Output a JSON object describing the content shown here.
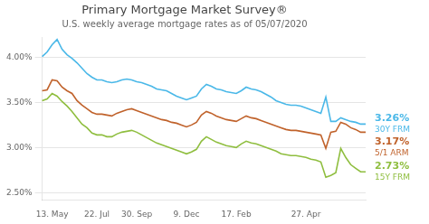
{
  "chart_data": {
    "type": "line",
    "title": "Primary Mortgage Market Survey®",
    "subtitle": "U.S. weekly average mortgage rates as of 05/07/2020",
    "categories": [
      null,
      null,
      "13. May",
      null,
      null,
      null,
      null,
      null,
      null,
      null,
      null,
      "22. Jul",
      null,
      null,
      null,
      null,
      null,
      null,
      null,
      "30. Sep",
      null,
      null,
      null,
      null,
      null,
      null,
      null,
      null,
      null,
      "9. Dec",
      null,
      null,
      null,
      null,
      null,
      null,
      null,
      null,
      null,
      "17. Feb",
      null,
      null,
      null,
      null,
      null,
      null,
      null,
      null,
      null,
      null,
      null,
      null,
      null,
      "27. Apr",
      null,
      null,
      null,
      null,
      null,
      null,
      null,
      null,
      null,
      null,
      null,
      null
    ],
    "series": [
      {
        "name": "30Y FRM",
        "color": "#4ab8e8",
        "annotation": "3.26%",
        "values": [
          4.01,
          4.06,
          4.14,
          4.2,
          4.09,
          4.03,
          3.99,
          3.94,
          3.88,
          3.82,
          3.78,
          3.75,
          3.75,
          3.73,
          3.72,
          3.73,
          3.75,
          3.76,
          3.75,
          3.73,
          3.72,
          3.7,
          3.68,
          3.65,
          3.64,
          3.63,
          3.6,
          3.57,
          3.55,
          3.53,
          3.55,
          3.57,
          3.65,
          3.7,
          3.68,
          3.65,
          3.64,
          3.62,
          3.61,
          3.6,
          3.63,
          3.67,
          3.65,
          3.64,
          3.62,
          3.59,
          3.56,
          3.52,
          3.5,
          3.48,
          3.47,
          3.47,
          3.46,
          3.44,
          3.42,
          3.4,
          3.38,
          3.56,
          3.29,
          3.29,
          3.33,
          3.31,
          3.29,
          3.28,
          3.26,
          3.26
        ]
      },
      {
        "name": "5/1 ARM",
        "color": "#c0622b",
        "annotation": "3.17%",
        "values": [
          3.63,
          3.64,
          3.75,
          3.74,
          3.67,
          3.63,
          3.6,
          3.52,
          3.47,
          3.43,
          3.39,
          3.37,
          3.37,
          3.36,
          3.35,
          3.38,
          3.4,
          3.42,
          3.43,
          3.41,
          3.39,
          3.37,
          3.35,
          3.33,
          3.31,
          3.3,
          3.28,
          3.27,
          3.25,
          3.23,
          3.25,
          3.28,
          3.36,
          3.4,
          3.38,
          3.35,
          3.33,
          3.31,
          3.3,
          3.29,
          3.32,
          3.35,
          3.33,
          3.32,
          3.3,
          3.28,
          3.26,
          3.24,
          3.22,
          3.2,
          3.19,
          3.19,
          3.18,
          3.17,
          3.16,
          3.15,
          3.14,
          2.99,
          3.17,
          3.18,
          3.28,
          3.26,
          3.22,
          3.2,
          3.17,
          3.17
        ]
      },
      {
        "name": "15Y FRM",
        "color": "#8fbe3f",
        "annotation": "2.73%",
        "values": [
          3.52,
          3.54,
          3.6,
          3.57,
          3.51,
          3.46,
          3.4,
          3.33,
          3.26,
          3.22,
          3.16,
          3.14,
          3.14,
          3.12,
          3.12,
          3.15,
          3.17,
          3.18,
          3.19,
          3.17,
          3.14,
          3.11,
          3.08,
          3.05,
          3.03,
          3.01,
          2.99,
          2.97,
          2.95,
          2.93,
          2.95,
          2.98,
          3.07,
          3.12,
          3.09,
          3.06,
          3.04,
          3.02,
          3.01,
          3.0,
          3.04,
          3.07,
          3.05,
          3.04,
          3.02,
          3.0,
          2.98,
          2.96,
          2.93,
          2.92,
          2.91,
          2.91,
          2.9,
          2.89,
          2.87,
          2.86,
          2.84,
          2.67,
          2.69,
          2.72,
          2.99,
          2.89,
          2.81,
          2.77,
          2.73,
          2.73
        ]
      }
    ],
    "ylim": [
      2.42,
      4.22
    ],
    "yticks": [
      {
        "value": 2.5,
        "label": "2.50%"
      },
      {
        "value": 3.0,
        "label": "3.00%"
      },
      {
        "value": 3.5,
        "label": "3.50%"
      },
      {
        "value": 4.0,
        "label": "4.00%"
      }
    ],
    "grid": "y",
    "legend": false
  }
}
